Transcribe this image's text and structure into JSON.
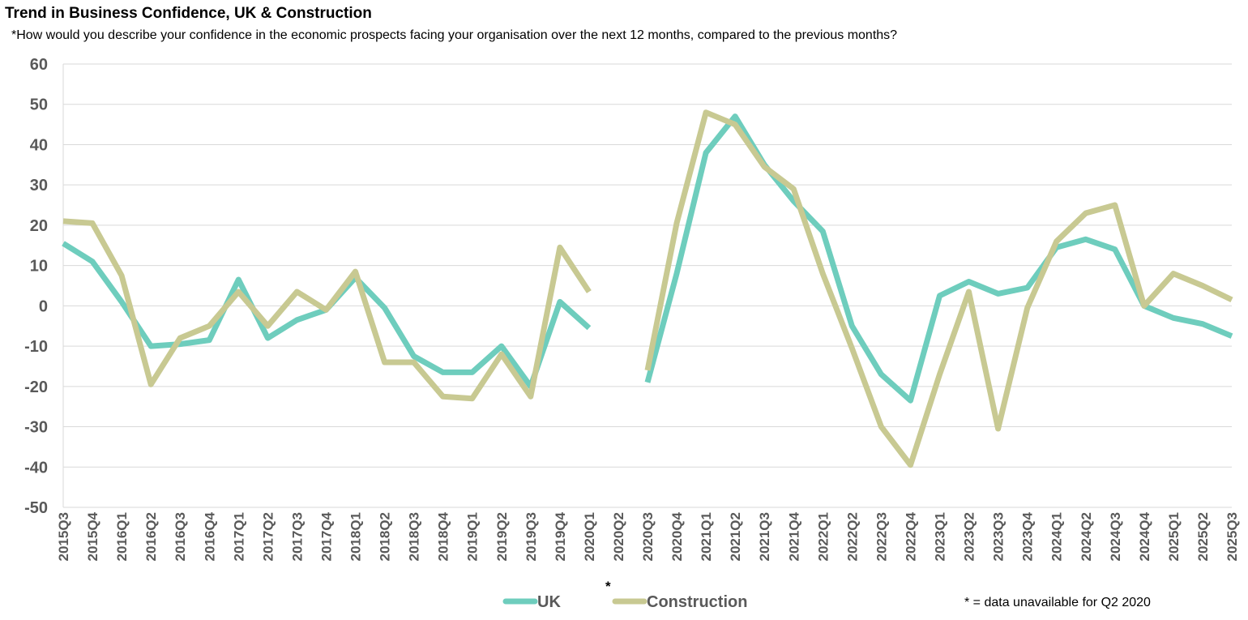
{
  "title": "Trend in Business Confidence, UK & Construction",
  "subtitle": "*How would you describe your confidence in the economic prospects facing your organisation over the next 12 months, compared to the previous months?",
  "note": "* = data unavailable for Q2 2020",
  "gap_marker": "*",
  "colors": {
    "uk": "#6ecdbd",
    "construction": "#c8c992",
    "grid": "#d9d9d9",
    "axis": "#d9d9d9"
  },
  "chart_data": {
    "type": "line",
    "title": "Trend in Business Confidence, UK & Construction",
    "xlabel": "",
    "ylabel": "",
    "ylim": [
      -50,
      60
    ],
    "yticks": [
      60,
      50,
      40,
      30,
      20,
      10,
      0,
      -10,
      -20,
      -30,
      -40,
      -50
    ],
    "ytick_labels": [
      "60",
      "50",
      "40",
      "30",
      "20",
      "10",
      "0",
      "-10",
      "-20",
      "-30",
      "-40",
      "-50"
    ],
    "grid": true,
    "legend": "bottom-center",
    "categories": [
      "2015Q3",
      "2015Q4",
      "2016Q1",
      "2016Q2",
      "2016Q3",
      "2016Q4",
      "2017Q1",
      "2017Q2",
      "2017Q3",
      "2017Q4",
      "2018Q1",
      "2018Q2",
      "2018Q3",
      "2018Q4",
      "2019Q1",
      "2019Q2",
      "2019Q3",
      "2019Q4",
      "2020Q1",
      "2020Q2",
      "2020Q3",
      "2020Q4",
      "2021Q1",
      "2021Q2",
      "2021Q3",
      "2021Q4",
      "2022Q1",
      "2022Q2",
      "2022Q3",
      "2022Q4",
      "2023Q1",
      "2023Q2",
      "2023Q3",
      "2023Q4",
      "2024Q1",
      "2024Q2",
      "2024Q3",
      "2024Q4",
      "2025Q1",
      "2025Q2",
      "2025Q3"
    ],
    "series": [
      {
        "name": "UK",
        "color": "#6ecdbd",
        "values": [
          15.5,
          11,
          1,
          -10,
          -9.5,
          -8.5,
          6.5,
          -8,
          -3.5,
          -1,
          7,
          -0.5,
          -12.5,
          -16.5,
          -16.5,
          -10,
          -20,
          1,
          -5.5,
          null,
          -19,
          8,
          38,
          47,
          35,
          26,
          18.5,
          -5,
          -17,
          -23.5,
          2.5,
          6,
          3,
          4.5,
          14.5,
          16.5,
          14,
          0,
          -3,
          -4.5,
          -7.5
        ]
      },
      {
        "name": "Construction",
        "color": "#c8c992",
        "values": [
          21,
          20.5,
          7.5,
          -19.5,
          -8,
          -5,
          3.5,
          -5,
          3.5,
          -1,
          8.5,
          -14,
          -14,
          -22.5,
          -23,
          -12,
          -22.5,
          14.5,
          3.5,
          null,
          -16,
          20.5,
          48,
          45,
          34.5,
          29,
          8,
          -10.5,
          -30,
          -39.5,
          -17,
          3.5,
          -30.5,
          -0.5,
          16,
          23,
          25,
          0,
          8,
          5,
          1.5
        ]
      }
    ]
  }
}
